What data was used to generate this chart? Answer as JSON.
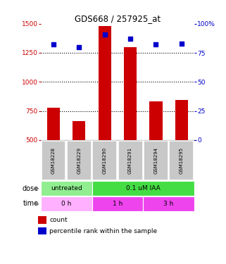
{
  "title": "GDS668 / 257925_at",
  "samples": [
    "GSM18228",
    "GSM18229",
    "GSM18290",
    "GSM18291",
    "GSM18294",
    "GSM18295"
  ],
  "bar_values": [
    780,
    660,
    1480,
    1300,
    830,
    845
  ],
  "bar_bottom": 500,
  "scatter_values": [
    82,
    80,
    91,
    87,
    82,
    83
  ],
  "ylim_left": [
    500,
    1500
  ],
  "ylim_right": [
    0,
    100
  ],
  "yticks_left": [
    500,
    750,
    1000,
    1250,
    1500
  ],
  "yticks_right": [
    0,
    25,
    50,
    75,
    100
  ],
  "ytick_labels_right": [
    "0",
    "25",
    "50",
    "75",
    "100%"
  ],
  "bar_color": "#CC0000",
  "scatter_color": "#0000CC",
  "dose_colors": [
    "#90EE90",
    "#44DD44"
  ],
  "time_color_light": "#FFB0FF",
  "time_color_dark": "#EE44EE",
  "tick_color_left": "#CC0000",
  "tick_color_right": "#0000CC",
  "background_color": "#FFFFFF",
  "sample_box_color": "#C8C8C8",
  "figsize": [
    3.21,
    3.75
  ],
  "dpi": 100
}
